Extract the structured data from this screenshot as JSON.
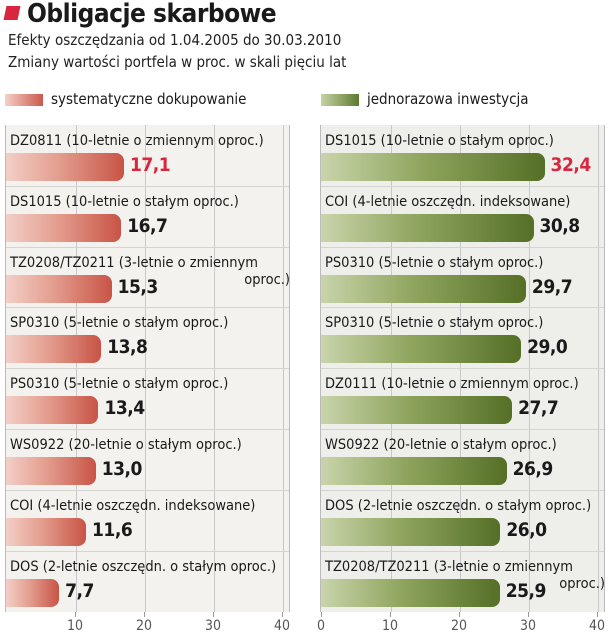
{
  "header": {
    "title": "Obligacje skarbowe",
    "subtitle": "Efekty oszczędzania od 1.04.2005 do 30.03.2010",
    "subtitle2": "Zmiany wartości portfela w proc. w skali pięciu lat"
  },
  "colors": {
    "accent": "#d7263d",
    "left_bar": "#c85446",
    "right_bar": "#556f27"
  },
  "chart_data": [
    {
      "type": "bar",
      "orientation": "horizontal",
      "series_name": "systematyczne dokupowanie",
      "xlim": [
        0,
        40
      ],
      "xticks": [
        "10",
        "20",
        "30",
        "40"
      ],
      "categories": [
        [
          "DZ0811 (10-letnie o zmiennym oproc.)"
        ],
        [
          "DS1015 (10-letnie o stałym oproc.)"
        ],
        [
          "TZ0208/TZ0211 (3-letnie o zmiennym",
          "oproc.)"
        ],
        [
          "SP0310 (5-letnie o stałym oproc.)"
        ],
        [
          "PS0310 (5-letnie o stałym oproc.)"
        ],
        [
          "WS0922 (20-letnie o stałym oproc.)"
        ],
        [
          "COI (4-letnie oszczędn. indeksowane)"
        ],
        [
          "DOS (2-letnie oszczędn. o stałym oproc.)"
        ]
      ],
      "values": [
        17.1,
        16.7,
        15.3,
        13.8,
        13.4,
        13.0,
        11.6,
        7.7
      ],
      "value_labels": [
        "17,1",
        "16,7",
        "15,3",
        "13,8",
        "13,4",
        "13,0",
        "11,6",
        "7,7"
      ],
      "highlight_index": 0
    },
    {
      "type": "bar",
      "orientation": "horizontal",
      "series_name": "jednorazowa inwestycja",
      "xlim": [
        0,
        40
      ],
      "xticks": [
        "0",
        "10",
        "20",
        "30",
        "40"
      ],
      "categories": [
        [
          "DS1015 (10-letnie o stałym oproc.)"
        ],
        [
          "COI (4-letnie oszczędn. indeksowane)"
        ],
        [
          "PS0310 (5-letnie o stałym oproc.)"
        ],
        [
          "SP0310 (5-letnie o stałym oproc.)"
        ],
        [
          "DZ0111 (10-letnie o zmiennym oproc.)"
        ],
        [
          "WS0922 (20-letnie o stałym oproc.)"
        ],
        [
          "DOS (2-letnie oszczędn. o stałym oproc.)"
        ],
        [
          "TZ0208/TZ0211 (3-letnie o zmiennym",
          "oproc.)"
        ]
      ],
      "values": [
        32.4,
        30.8,
        29.7,
        29.0,
        27.7,
        26.9,
        26.0,
        25.9
      ],
      "value_labels": [
        "32,4",
        "30,8",
        "29,7",
        "29,0",
        "27,7",
        "26,9",
        "26,0",
        "25,9"
      ],
      "highlight_index": 0
    }
  ]
}
